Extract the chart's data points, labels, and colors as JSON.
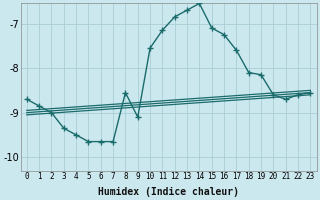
{
  "xlabel": "Humidex (Indice chaleur)",
  "bg_color": "#cce8ef",
  "grid_color": "#aacdd6",
  "line_color": "#1a6b6b",
  "xlim": [
    -0.5,
    23.5
  ],
  "ylim": [
    -10.3,
    -6.55
  ],
  "yticks": [
    -10,
    -9,
    -8,
    -7
  ],
  "xticks": [
    0,
    1,
    2,
    3,
    4,
    5,
    6,
    7,
    8,
    9,
    10,
    11,
    12,
    13,
    14,
    15,
    16,
    17,
    18,
    19,
    20,
    21,
    22,
    23
  ],
  "main_series": [
    [
      0,
      -8.7
    ],
    [
      1,
      -8.85
    ],
    [
      2,
      -9.0
    ],
    [
      3,
      -9.35
    ],
    [
      4,
      -9.5
    ],
    [
      5,
      -9.65
    ],
    [
      6,
      -9.65
    ],
    [
      7,
      -9.65
    ],
    [
      8,
      -8.55
    ],
    [
      9,
      -9.1
    ],
    [
      10,
      -7.55
    ],
    [
      11,
      -7.15
    ],
    [
      12,
      -6.85
    ],
    [
      13,
      -6.7
    ],
    [
      14,
      -6.55
    ],
    [
      15,
      -7.1
    ],
    [
      16,
      -7.25
    ],
    [
      17,
      -7.6
    ],
    [
      18,
      -8.1
    ],
    [
      19,
      -8.15
    ],
    [
      20,
      -8.6
    ],
    [
      21,
      -8.7
    ],
    [
      22,
      -8.6
    ],
    [
      23,
      -8.55
    ]
  ],
  "flat_lines": [
    {
      "x0": 0,
      "y0": -9.05,
      "x1": 23,
      "y1": -8.6
    },
    {
      "x0": 0,
      "y0": -9.0,
      "x1": 23,
      "y1": -8.55
    },
    {
      "x0": 0,
      "y0": -8.95,
      "x1": 23,
      "y1": -8.5
    }
  ]
}
